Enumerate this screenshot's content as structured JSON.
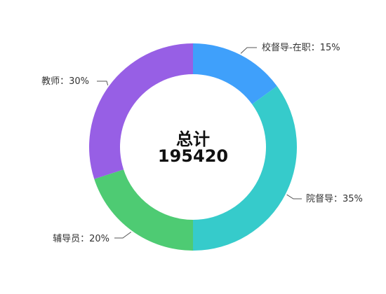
{
  "chart_data": {
    "type": "pie",
    "variant": "donut",
    "center": {
      "title": "总计",
      "value": "195420"
    },
    "slices": [
      {
        "name": "校督导-在职",
        "label": "校督导-在职：15%",
        "value": 15,
        "color": "#3fa0fb"
      },
      {
        "name": "院督导",
        "label": "院督导：35%",
        "value": 35,
        "color": "#36cbcb"
      },
      {
        "name": "辅导员",
        "label": "辅导员：20%",
        "value": 20,
        "color": "#4ecb73"
      },
      {
        "name": "教师",
        "label": "教师：30%",
        "value": 30,
        "color": "#975fe5"
      }
    ],
    "start_angle_deg": 0,
    "legend": "none"
  }
}
